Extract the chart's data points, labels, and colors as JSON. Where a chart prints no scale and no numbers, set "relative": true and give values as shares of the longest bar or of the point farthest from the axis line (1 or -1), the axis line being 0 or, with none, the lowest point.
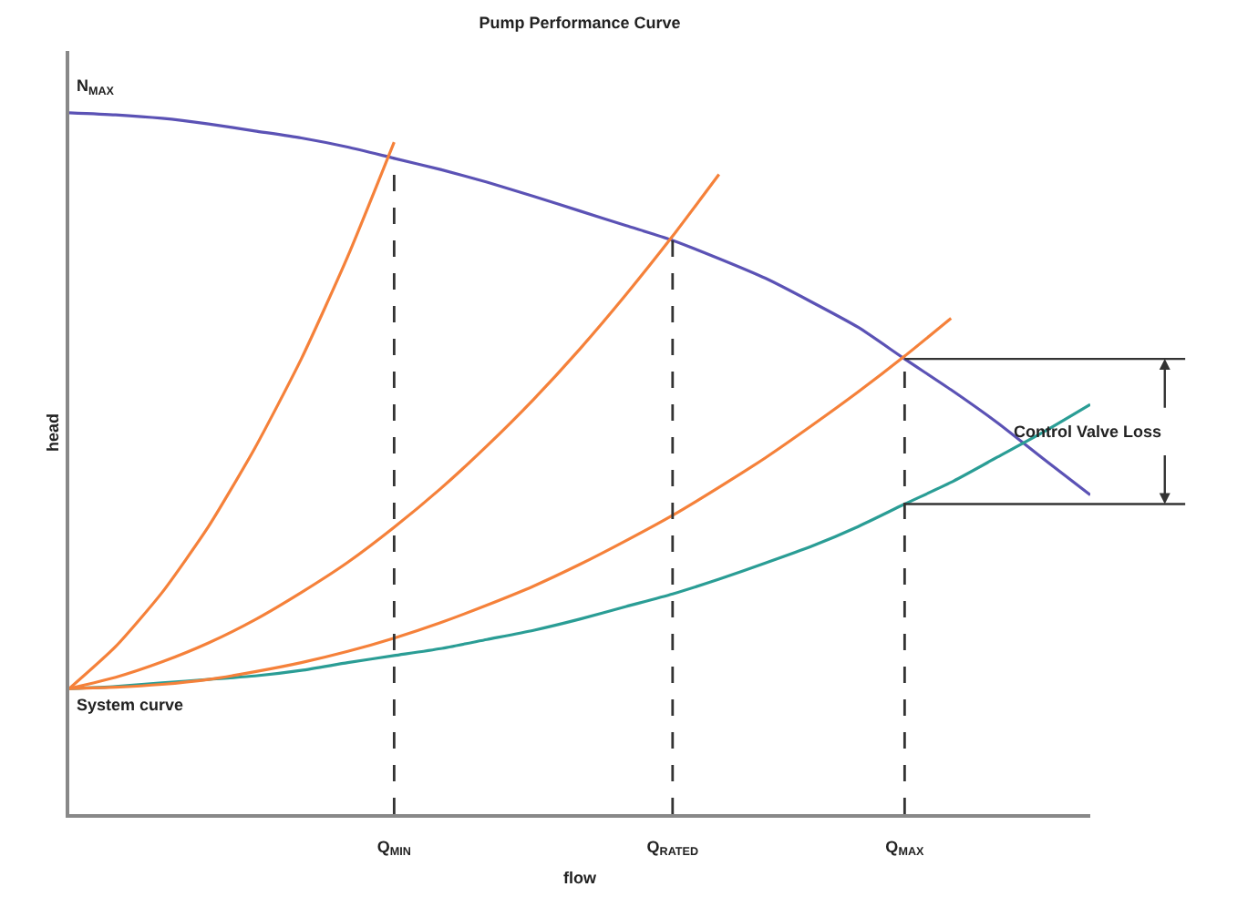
{
  "chart_data": {
    "type": "line",
    "title": "Pump Performance Curve",
    "xlabel": "flow",
    "ylabel": "head",
    "relative": true,
    "categories": [
      null,
      null,
      null,
      null,
      null,
      null,
      null,
      "Q$_{MIN}$",
      null,
      null,
      null,
      null,
      null,
      "Q$_{RATED}$",
      null,
      null,
      null,
      null,
      "Q$_{MAX}$",
      null,
      null,
      null,
      null
    ],
    "marker": "none",
    "series": [
      {
        "color": "#5b52b5",
        "values": [
          1.0,
          0.997,
          0.992,
          0.984,
          0.974,
          0.964,
          0.951,
          0.935,
          0.919,
          0.901,
          0.881,
          0.86,
          0.839,
          0.818,
          0.792,
          0.764,
          0.73,
          0.694,
          0.649,
          0.605,
          0.558,
          0.506,
          0.455
        ]
      },
      {
        "color": "#2a9d95",
        "values": [
          0.179,
          0.182,
          0.187,
          0.192,
          0.197,
          0.205,
          0.216,
          0.226,
          0.236,
          0.249,
          0.262,
          0.278,
          0.296,
          0.314,
          0.335,
          0.358,
          0.382,
          0.41,
          0.442,
          0.473,
          0.509,
          0.545,
          0.584
        ]
      },
      {
        "color": "#f5813a",
        "values": [
          0.179,
          0.239,
          0.316,
          0.41,
          0.522,
          0.649,
          0.795,
          0.958,
          null,
          null,
          null,
          null,
          null,
          null,
          null,
          null,
          null,
          null,
          null,
          null,
          null,
          null,
          null
        ]
      },
      {
        "color": "#f5813a",
        "values": [
          0.179,
          0.195,
          0.217,
          0.244,
          0.277,
          0.316,
          0.359,
          0.409,
          0.464,
          0.525,
          0.591,
          0.663,
          0.741,
          0.824,
          0.912,
          null,
          null,
          null,
          null,
          null,
          null,
          null,
          null
        ]
      },
      {
        "color": "#f5813a",
        "values": [
          0.179,
          0.181,
          0.185,
          0.192,
          0.203,
          0.216,
          0.232,
          0.251,
          0.273,
          0.298,
          0.325,
          0.356,
          0.39,
          0.426,
          0.466,
          0.508,
          0.554,
          0.602,
          0.653,
          0.707,
          null,
          null,
          null
        ]
      }
    ],
    "ref_lines": [
      {
        "axis": "x",
        "value": "Q$_{MIN}$",
        "color": "#333333",
        "line_style": "dashed"
      },
      {
        "axis": "x",
        "value": "Q$_{RATED}$",
        "color": "#333333",
        "line_style": "dashed"
      },
      {
        "axis": "x",
        "value": "Q$_{MAX}$",
        "color": "#333333",
        "line_style": "dashed"
      },
      {
        "axis": "y",
        "value": 0.649,
        "color": "#333333"
      },
      {
        "axis": "y",
        "value": 0.442,
        "color": "#333333"
      }
    ],
    "annotations": [
      {
        "text": "N$_{MAX}$",
        "y": 1.0
      },
      {
        "text": "System curve",
        "y": 0.179
      },
      "Control Valve Loss"
    ]
  }
}
